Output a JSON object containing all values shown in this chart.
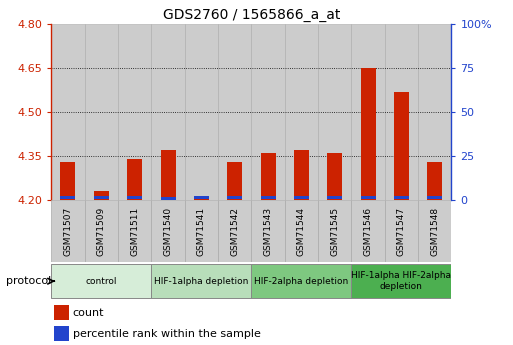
{
  "title": "GDS2760 / 1565866_a_at",
  "samples": [
    "GSM71507",
    "GSM71509",
    "GSM71511",
    "GSM71540",
    "GSM71541",
    "GSM71542",
    "GSM71543",
    "GSM71544",
    "GSM71545",
    "GSM71546",
    "GSM71547",
    "GSM71548"
  ],
  "red_values": [
    4.33,
    4.23,
    4.34,
    4.37,
    4.21,
    4.33,
    4.36,
    4.37,
    4.36,
    4.65,
    4.57,
    4.33
  ],
  "blue_values": [
    4.203,
    4.203,
    4.203,
    4.202,
    4.203,
    4.203,
    4.203,
    4.203,
    4.203,
    4.203,
    4.203,
    4.203
  ],
  "blue_heights": [
    0.01,
    0.012,
    0.01,
    0.007,
    0.011,
    0.01,
    0.011,
    0.011,
    0.011,
    0.011,
    0.011,
    0.011
  ],
  "ymin": 4.2,
  "ymax": 4.8,
  "y_ticks_red": [
    4.2,
    4.35,
    4.5,
    4.65,
    4.8
  ],
  "y_ticks_blue": [
    0,
    25,
    50,
    75,
    100
  ],
  "groups": [
    {
      "label": "control",
      "start": 0,
      "end": 3,
      "color": "#d6edd8"
    },
    {
      "label": "HIF-1alpha depletion",
      "start": 3,
      "end": 6,
      "color": "#b8deba"
    },
    {
      "label": "HIF-2alpha depletion",
      "start": 6,
      "end": 9,
      "color": "#7ec880"
    },
    {
      "label": "HIF-1alpha HIF-2alpha\ndepletion",
      "start": 9,
      "end": 12,
      "color": "#4caf50"
    }
  ],
  "bar_width": 0.45,
  "red_color": "#cc2200",
  "blue_color": "#2244cc",
  "bar_bg_color": "#cccccc",
  "protocol_label": "protocol",
  "legend_count": "count",
  "legend_percentile": "percentile rank within the sample"
}
